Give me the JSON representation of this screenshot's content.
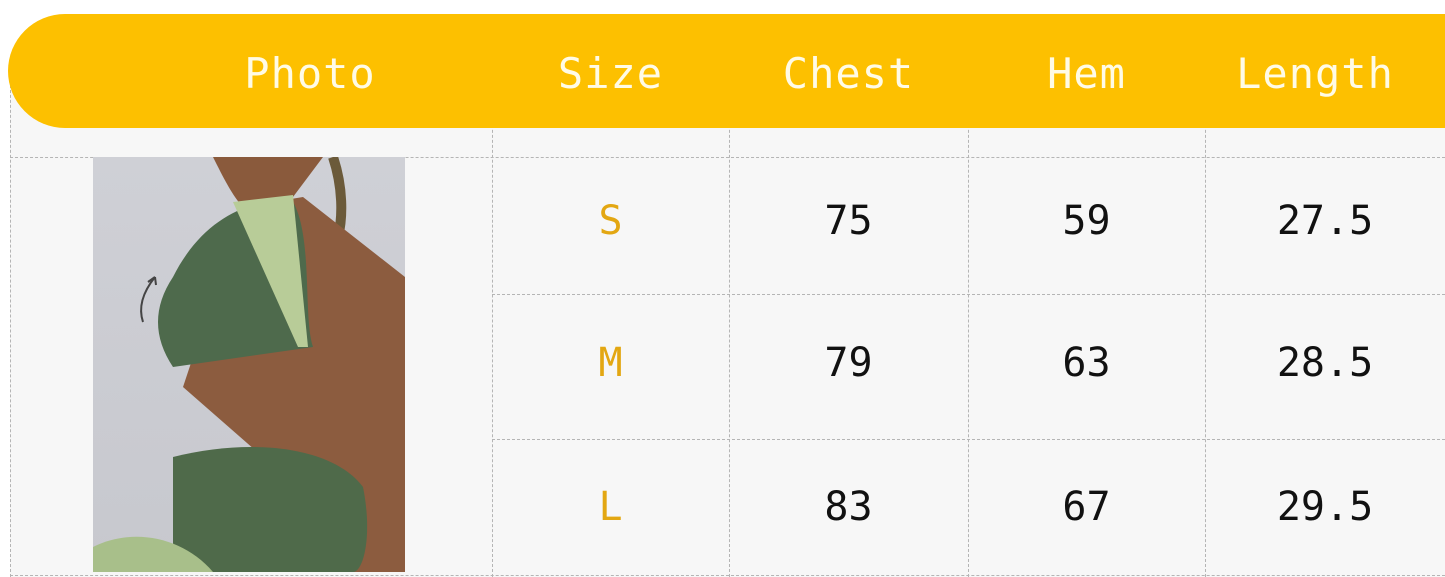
{
  "header": {
    "columns": [
      "Photo",
      "Size",
      "Chest",
      "Hem",
      "Length"
    ]
  },
  "rows": [
    {
      "size": "S",
      "chest": "75",
      "hem": "59",
      "length": "27.5"
    },
    {
      "size": "M",
      "chest": "79",
      "hem": "63",
      "length": "28.5"
    },
    {
      "size": "L",
      "chest": "83",
      "hem": "67",
      "length": "29.5"
    }
  ],
  "colors": {
    "header_bg": "#fdc000",
    "header_text": "#fffbe6",
    "size_text": "#e3a712"
  },
  "photo": {
    "icon": "product-photo-sports-bra-model"
  }
}
